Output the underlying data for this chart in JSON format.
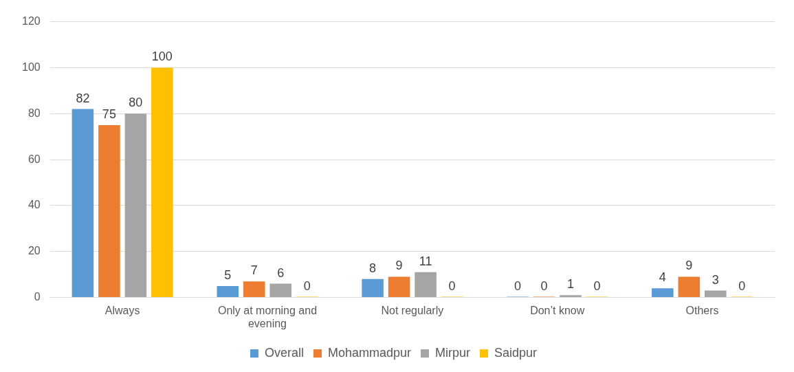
{
  "chart_data": {
    "type": "bar",
    "categories": [
      "Always",
      "Only at morning and evening",
      "Not regularly",
      "Don’t know",
      "Others"
    ],
    "series": [
      {
        "name": "Overall",
        "color": "#5b9bd5",
        "values": [
          82,
          5,
          8,
          0,
          4
        ]
      },
      {
        "name": "Mohammadpur",
        "color": "#ed7d31",
        "values": [
          75,
          7,
          9,
          0,
          9
        ]
      },
      {
        "name": "Mirpur",
        "color": "#a5a5a5",
        "values": [
          80,
          6,
          11,
          1,
          3
        ]
      },
      {
        "name": "Saidpur",
        "color": "#ffc000",
        "values": [
          100,
          0,
          0,
          0,
          0
        ]
      }
    ],
    "ylim": [
      0,
      120
    ],
    "yticks": [
      0,
      20,
      40,
      60,
      80,
      100,
      120
    ],
    "grid": "y",
    "legend": "bottom",
    "data_labels": true
  }
}
